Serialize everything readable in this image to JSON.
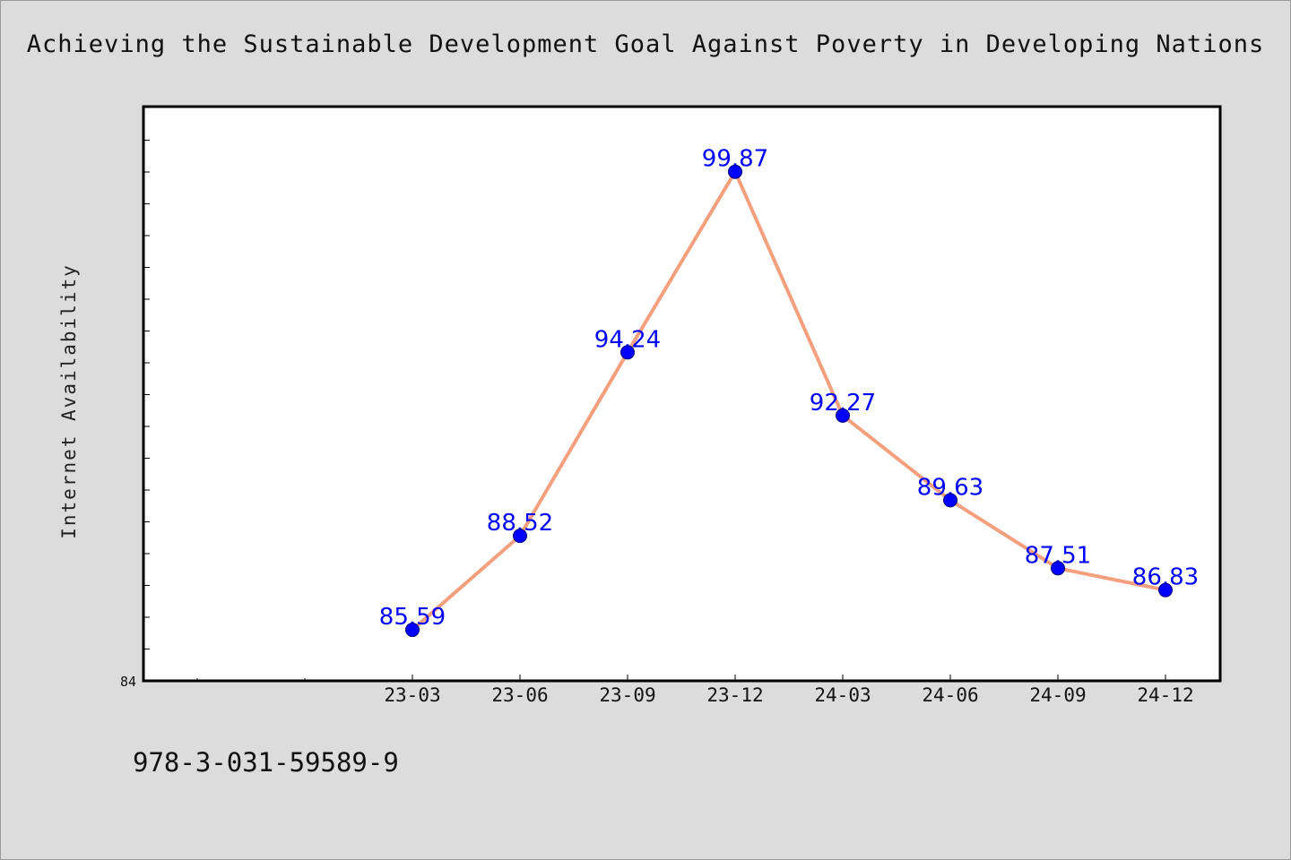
{
  "title": "Achieving the Sustainable Development Goal Against Poverty in Developing Nations",
  "footer_code": "978-3-031-59589-9",
  "colors": {
    "background": "#dcdcdc",
    "plot_background": "#ffffff",
    "line": "#f4a07e",
    "marker": "#0000ff",
    "data_label": "#0000ff"
  },
  "chart_data": {
    "type": "line",
    "ylabel": "Internet Availability",
    "xlabel": "",
    "categories": [
      "23-03",
      "23-06",
      "23-09",
      "23-12",
      "24-03",
      "24-06",
      "24-09",
      "24-12"
    ],
    "values": [
      85.59,
      88.52,
      94.24,
      99.87,
      92.27,
      89.63,
      87.51,
      86.83
    ],
    "data_labels": [
      "85.59",
      "88.52",
      "94.24",
      "99.87",
      "92.27",
      "89.63",
      "87.51",
      "86.83"
    ],
    "y_tick_labels": [
      "84"
    ],
    "ylim": [
      84,
      101.9
    ],
    "x_slots_before_first": 2,
    "grid": false,
    "legend": "none"
  }
}
